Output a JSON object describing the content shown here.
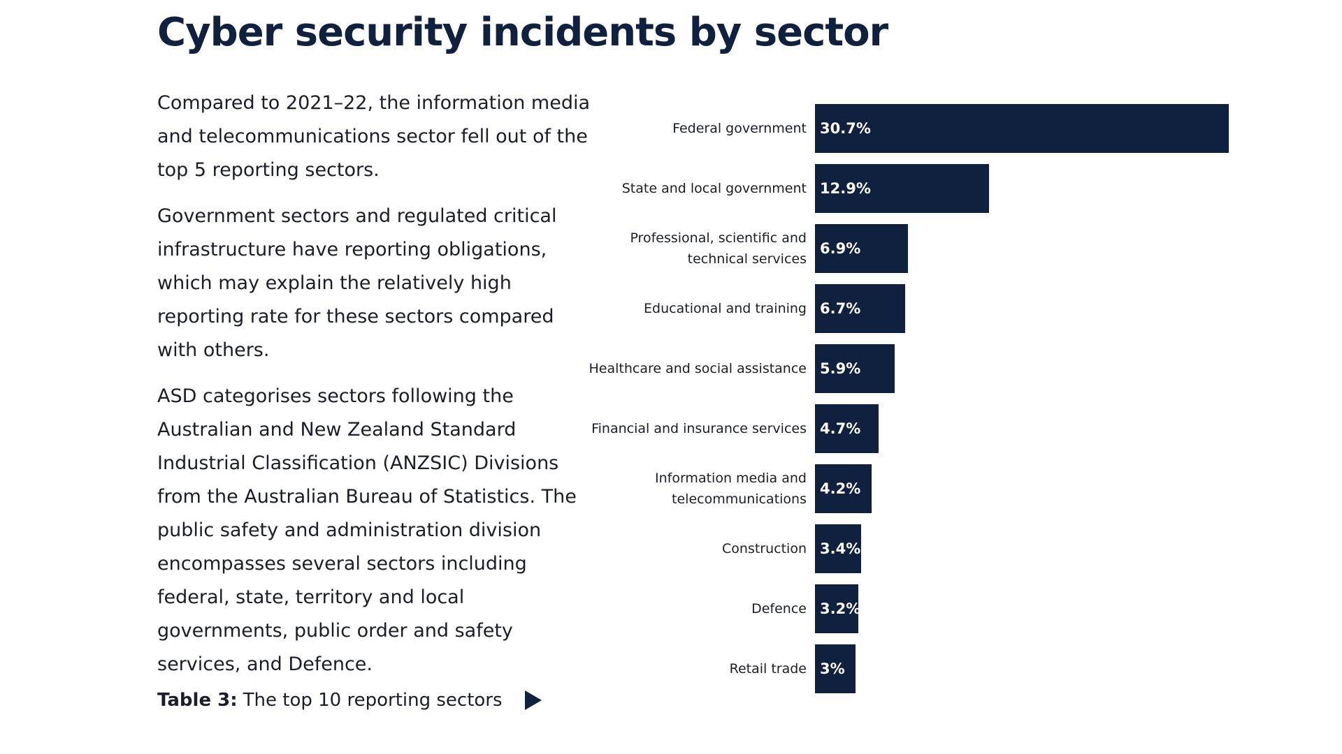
{
  "title": "Cyber security incidents by sector",
  "paragraphs": [
    "Compared to 2021–22, the information media and telecommunications sector fell out of the top 5 reporting sectors.",
    "Government sectors and regulated critical infrastructure have reporting obligations, which may explain the relatively high reporting rate for these sectors compared with others.",
    "ASD categorises sectors following the Australian and New Zealand Standard Industrial Classification (ANZSIC) Divisions from the Australian Bureau of Statistics. The public safety and administration division encompasses several sectors including federal, state, territory and local governments, public order and safety services, and Defence."
  ],
  "caption": {
    "label": "Table 3:",
    "text": "The top 10 reporting sectors",
    "icon": "play-triangle-icon"
  },
  "colors": {
    "bar": "#10213f",
    "title": "#10213f"
  },
  "chart_data": {
    "type": "bar",
    "orientation": "horizontal",
    "categories": [
      "Federal government",
      "State and local government",
      "Professional, scientific and technical services",
      "Educational and training",
      "Healthcare and social assistance",
      "Financial and insurance services",
      "Information media and telecommunications",
      "Construction",
      "Defence",
      "Retail trade"
    ],
    "values": [
      30.7,
      12.9,
      6.9,
      6.7,
      5.9,
      4.7,
      4.2,
      3.4,
      3.2,
      3
    ],
    "data_labels": [
      "30.7%",
      "12.9%",
      "6.9%",
      "6.7%",
      "5.9%",
      "4.7%",
      "4.2%",
      "3.4%",
      "3.2%",
      "3%"
    ],
    "unit": "%",
    "grid": false,
    "legend": "none"
  }
}
